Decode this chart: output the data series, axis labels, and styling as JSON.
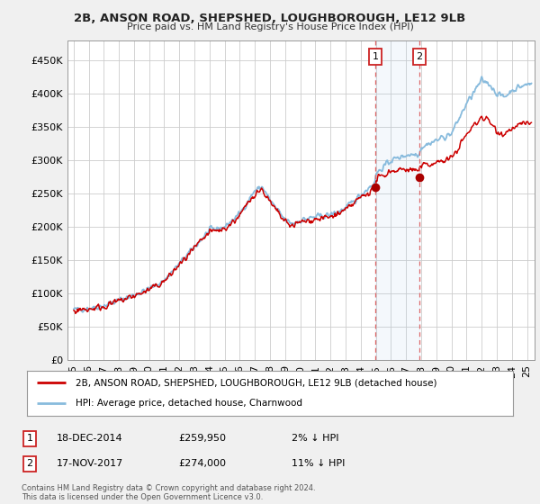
{
  "title": "2B, ANSON ROAD, SHEPSHED, LOUGHBOROUGH, LE12 9LB",
  "subtitle": "Price paid vs. HM Land Registry's House Price Index (HPI)",
  "ylabel_ticks": [
    "£0",
    "£50K",
    "£100K",
    "£150K",
    "£200K",
    "£250K",
    "£300K",
    "£350K",
    "£400K",
    "£450K"
  ],
  "ytick_values": [
    0,
    50000,
    100000,
    150000,
    200000,
    250000,
    300000,
    350000,
    400000,
    450000
  ],
  "ylim": [
    0,
    480000
  ],
  "hpi_color": "#88bbdd",
  "price_color": "#cc0000",
  "background_color": "#f0f0f0",
  "plot_bg_color": "#ffffff",
  "grid_color": "#cccccc",
  "sale1_price": 259950,
  "sale1_x": 2014.96,
  "sale2_price": 274000,
  "sale2_x": 2017.88,
  "legend_line1": "2B, ANSON ROAD, SHEPSHED, LOUGHBOROUGH, LE12 9LB (detached house)",
  "legend_line2": "HPI: Average price, detached house, Charnwood",
  "footer": "Contains HM Land Registry data © Crown copyright and database right 2024.\nThis data is licensed under the Open Government Licence v3.0.",
  "xtick_years": [
    1995,
    1996,
    1997,
    1998,
    1999,
    2000,
    2001,
    2002,
    2003,
    2004,
    2005,
    2006,
    2007,
    2008,
    2009,
    2010,
    2011,
    2012,
    2013,
    2014,
    2015,
    2016,
    2017,
    2018,
    2019,
    2020,
    2021,
    2022,
    2023,
    2024,
    2025
  ]
}
